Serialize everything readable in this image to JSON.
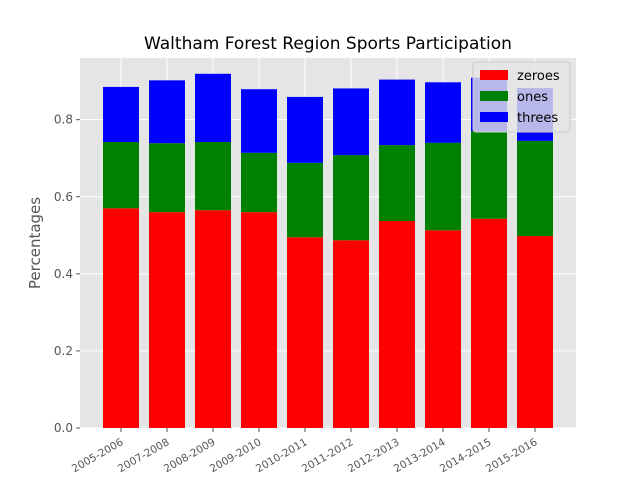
{
  "chart_data": {
    "type": "bar",
    "stacked": true,
    "title": "Waltham Forest Region Sports Participation",
    "xlabel": "",
    "ylabel": "Percentages",
    "ylim": [
      0,
      0.96
    ],
    "yticks": [
      "0.0",
      "0.2",
      "0.4",
      "0.6",
      "0.8"
    ],
    "grid": true,
    "legend_position": "top-right",
    "categories": [
      "2005-2006",
      "2007-2008",
      "2008-2009",
      "2009-2010",
      "2010-2011",
      "2011-2012",
      "2012-2013",
      "2013-2014",
      "2014-2015",
      "2015-2016"
    ],
    "series": [
      {
        "name": "zeroes",
        "color": "#ff0000",
        "values": [
          0.57,
          0.56,
          0.565,
          0.56,
          0.495,
          0.487,
          0.537,
          0.513,
          0.543,
          0.498
        ]
      },
      {
        "name": "ones",
        "color": "#008000",
        "values": [
          0.172,
          0.179,
          0.177,
          0.154,
          0.193,
          0.221,
          0.197,
          0.227,
          0.227,
          0.247
        ]
      },
      {
        "name": "threes",
        "color": "#0000ff",
        "values": [
          0.143,
          0.163,
          0.177,
          0.165,
          0.171,
          0.173,
          0.17,
          0.157,
          0.139,
          0.137
        ]
      }
    ]
  }
}
